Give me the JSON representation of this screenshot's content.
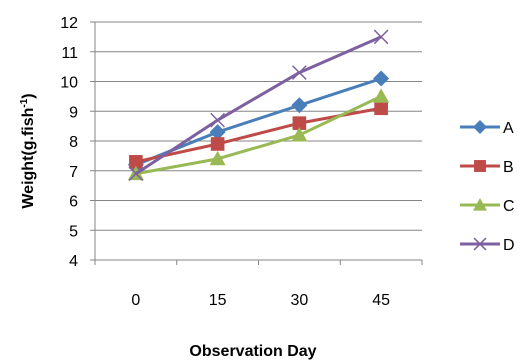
{
  "chart_data": {
    "type": "line",
    "title": "",
    "xlabel": "Observation Day",
    "ylabel": "Weight(g.fish",
    "ylabel_superscript": "-1",
    "ylabel_suffix": ")",
    "x": [
      0,
      15,
      30,
      45
    ],
    "x_tick_labels": [
      "0",
      "15",
      "30",
      "45"
    ],
    "ylim": [
      4,
      12
    ],
    "y_ticks": [
      4,
      5,
      6,
      7,
      8,
      9,
      10,
      11,
      12
    ],
    "grid": "horizontal",
    "legend_position": "right",
    "series": [
      {
        "name": "A",
        "values": [
          7.2,
          8.3,
          9.2,
          10.1
        ],
        "color": "#4A7EBB",
        "marker": "diamond"
      },
      {
        "name": "B",
        "values": [
          7.3,
          7.9,
          8.6,
          9.1
        ],
        "color": "#BE4B48",
        "marker": "square"
      },
      {
        "name": "C",
        "values": [
          6.9,
          7.4,
          8.2,
          9.5
        ],
        "color": "#98B954",
        "marker": "triangle"
      },
      {
        "name": "D",
        "values": [
          6.9,
          8.7,
          10.3,
          11.5
        ],
        "color": "#7D60A0",
        "marker": "x"
      }
    ]
  }
}
